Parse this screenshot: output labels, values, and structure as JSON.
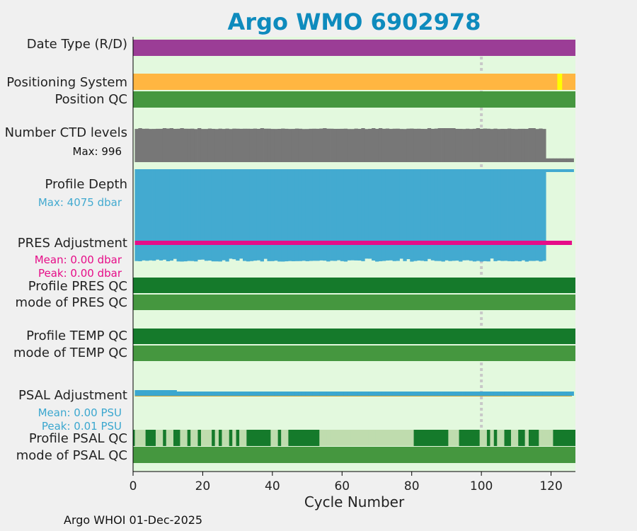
{
  "title": "Argo WMO 6902978",
  "colors": {
    "title": "#0e8bbd",
    "background": "#e3f9de",
    "date_type": "#9b3d96",
    "positioning_system": "#ffb641",
    "positioning_other": "#ffff00",
    "position_qc": "#45973f",
    "ctd_levels": "#777777",
    "profile_depth": "#43aad0",
    "pres_adjustment": "#e60d88",
    "qc_dark": "#157a2b",
    "qc_mid": "#45973f",
    "qc_light": "#bfdcae",
    "psal_adjustment": "#3ba7cf",
    "psal_mean": "#c9a13a",
    "gridline": "#c8c8c8"
  },
  "labels": {
    "date_type": "Date Type (R/D)",
    "positioning_system": "Positioning System",
    "position_qc": "Position QC",
    "ctd_levels": "Number CTD levels",
    "ctd_max": "Max: 996",
    "profile_depth": "Profile Depth",
    "depth_max": "Max: 4075 dbar",
    "pres_adjustment": "PRES Adjustment",
    "pres_mean": "Mean: 0.00 dbar",
    "pres_peak": "Peak: 0.00 dbar",
    "profile_pres_qc": "Profile PRES QC",
    "mode_pres_qc": "mode of PRES QC",
    "profile_temp_qc": "Profile TEMP QC",
    "mode_temp_qc": "mode of TEMP QC",
    "psal_adjustment": "PSAL Adjustment",
    "psal_mean": "Mean: 0.00 PSU",
    "psal_peak": "Peak: 0.01 PSU",
    "profile_psal_qc": "Profile PSAL QC",
    "mode_psal_qc": "mode of PSAL QC"
  },
  "footer": "Argo WHOI 01-Dec-2025",
  "chart_data": {
    "type": "bar",
    "xlabel": "Cycle Number",
    "xlim": [
      0,
      127
    ],
    "xticks": [
      0,
      20,
      40,
      60,
      80,
      100,
      120
    ],
    "vertical_marker": 100,
    "cycles_last": 126,
    "deep_cycles_last": 118,
    "ctd_levels_max": 996,
    "profile_depth_max_dbar": 4075,
    "positioning_other_cycles": [
      122,
      123
    ],
    "ctd_levels_late": 110,
    "profile_depth_late_dbar": 120,
    "psal_qc_light_cycles": [
      1,
      2,
      3,
      7,
      8,
      10,
      11,
      14,
      15,
      17,
      18,
      20,
      21,
      22,
      24,
      26,
      27,
      29,
      31,
      32,
      40,
      41,
      43,
      44,
      54,
      55,
      56,
      57,
      58,
      59,
      60,
      61,
      62,
      63,
      64,
      65,
      66,
      67,
      68,
      69,
      70,
      71,
      72,
      73,
      74,
      75,
      76,
      77,
      78,
      79,
      80,
      91,
      92,
      93,
      100,
      101,
      103,
      105,
      106,
      109,
      110,
      113,
      117,
      118,
      119,
      120
    ],
    "series": [
      {
        "name": "Number CTD levels",
        "base": 985,
        "jitter": 15
      },
      {
        "name": "Profile Depth",
        "base": 4000,
        "jitter": 60
      }
    ]
  }
}
